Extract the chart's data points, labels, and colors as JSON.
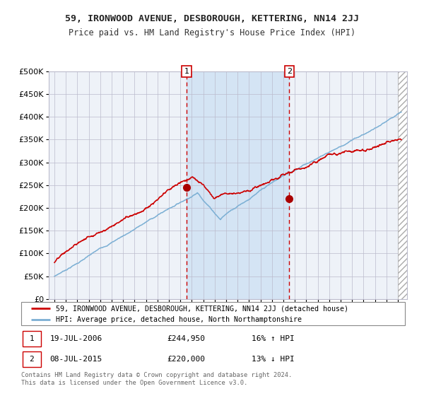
{
  "title": "59, IRONWOOD AVENUE, DESBOROUGH, KETTERING, NN14 2JJ",
  "subtitle": "Price paid vs. HM Land Registry's House Price Index (HPI)",
  "legend_entry1": "59, IRONWOOD AVENUE, DESBOROUGH, KETTERING, NN14 2JJ (detached house)",
  "legend_entry2": "HPI: Average price, detached house, North Northamptonshire",
  "annotation1_date": "19-JUL-2006",
  "annotation1_price": "£244,950",
  "annotation1_hpi": "16% ↑ HPI",
  "annotation2_date": "08-JUL-2015",
  "annotation2_price": "£220,000",
  "annotation2_hpi": "13% ↓ HPI",
  "footnote": "Contains HM Land Registry data © Crown copyright and database right 2024.\nThis data is licensed under the Open Government Licence v3.0.",
  "hpi_color": "#7bafd4",
  "price_color": "#cc0000",
  "marker_color": "#aa0000",
  "background_color": "#ffffff",
  "plot_bg_color": "#eef2f8",
  "shade_color": "#d4e4f4",
  "grid_color": "#bbbbcc",
  "dashed_line_color": "#cc0000",
  "ylim": [
    0,
    500000
  ],
  "yticks": [
    0,
    50000,
    100000,
    150000,
    200000,
    250000,
    300000,
    350000,
    400000,
    450000,
    500000
  ],
  "sale1_year": 2006.54,
  "sale2_year": 2015.52,
  "sale1_price": 244950,
  "sale2_price": 220000
}
